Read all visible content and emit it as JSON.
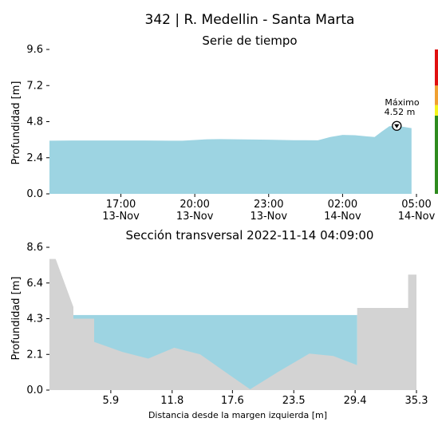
{
  "figure": {
    "title": "342 | R. Medellin - Santa Marta"
  },
  "chart_data": [
    {
      "type": "area",
      "title": "Serie de tiempo",
      "ylabel": "Profundidad [m]",
      "xlabel": "",
      "ylim": [
        0,
        9.6
      ],
      "yticks": [
        "0.0",
        "2.4",
        "4.8",
        "7.2",
        "9.6"
      ],
      "xticks": [
        {
          "hour": 17.0,
          "time": "17:00",
          "date": "13-Nov"
        },
        {
          "hour": 20.0,
          "time": "20:00",
          "date": "13-Nov"
        },
        {
          "hour": 23.0,
          "time": "23:00",
          "date": "13-Nov"
        },
        {
          "hour": 26.0,
          "time": "02:00",
          "date": "14-Nov"
        },
        {
          "hour": 29.0,
          "time": "05:00",
          "date": "14-Nov"
        }
      ],
      "xlim_hour": [
        14.1,
        29.0
      ],
      "series": [
        {
          "color": "#9dd4e2",
          "x_hour": [
            14.1,
            15.0,
            16.0,
            17.0,
            18.0,
            19.0,
            19.5,
            20.0,
            20.5,
            21.0,
            22.0,
            23.0,
            24.0,
            25.0,
            25.5,
            26.0,
            26.5,
            27.0,
            27.3,
            27.6,
            27.9,
            28.2,
            28.5,
            28.8
          ],
          "values": [
            3.53,
            3.55,
            3.55,
            3.55,
            3.55,
            3.53,
            3.53,
            3.58,
            3.63,
            3.64,
            3.62,
            3.6,
            3.57,
            3.56,
            3.78,
            3.92,
            3.9,
            3.82,
            3.78,
            4.15,
            4.5,
            4.52,
            4.45,
            4.37
          ]
        }
      ],
      "annotation": {
        "label": "Máximo",
        "value_text": "4.52 m",
        "x_hour": 28.2,
        "y": 4.52
      },
      "status_bar": [
        {
          "from": 0,
          "to": 5.2,
          "color": "#2e8b1e"
        },
        {
          "from": 5.2,
          "to": 5.9,
          "color": "#f4f41a"
        },
        {
          "from": 5.9,
          "to": 7.2,
          "color": "#f0a030"
        },
        {
          "from": 7.2,
          "to": 9.6,
          "color": "#e01010"
        }
      ]
    },
    {
      "type": "area",
      "title": "Sección transversal 2022-11-14 04:09:00",
      "xlabel": "Distancia desde la margen izquierda [m]",
      "ylabel": "Profundidad [m]",
      "xlim": [
        0,
        35.3
      ],
      "ylim": [
        0,
        8.6
      ],
      "xticks": [
        "5.9",
        "11.8",
        "17.6",
        "23.5",
        "29.4",
        "35.3"
      ],
      "yticks": [
        "0.0",
        "2.1",
        "4.3",
        "6.4",
        "8.6"
      ],
      "water_level": 4.52,
      "water_x": [
        2.3,
        29.6
      ],
      "water_color": "#9dd4e2",
      "terrain_color": "#d3d3d3",
      "terrain": {
        "x": [
          0,
          0.6,
          2.3,
          2.3,
          4.3,
          4.3,
          7.0,
          9.5,
          12.0,
          14.5,
          17.0,
          19.3,
          22.0,
          25.0,
          27.3,
          29.6,
          29.6,
          34.5,
          34.5,
          35.3
        ],
        "y": [
          7.9,
          7.9,
          5.0,
          4.3,
          4.3,
          2.9,
          2.3,
          1.9,
          2.55,
          2.15,
          1.05,
          0.05,
          1.1,
          2.2,
          2.05,
          1.5,
          4.95,
          4.95,
          6.95,
          6.95
        ]
      }
    }
  ]
}
